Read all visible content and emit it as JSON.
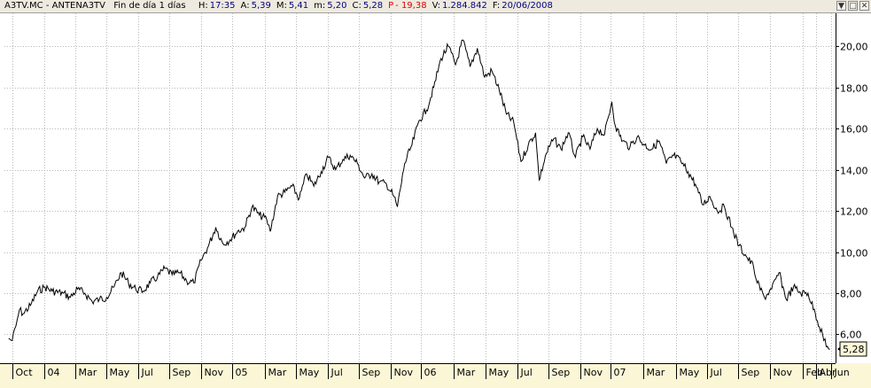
{
  "header": {
    "symbol": "A3TV.MC - ANTENA3TV",
    "period": "Fin de día 1 días",
    "fields": [
      {
        "label": "H:",
        "value": "17:35",
        "color": "#000080"
      },
      {
        "label": "A:",
        "value": "5,39",
        "color": "#000080"
      },
      {
        "label": "M:",
        "value": "5,41",
        "color": "#000080"
      },
      {
        "label": "m:",
        "value": "5,20",
        "color": "#000080"
      },
      {
        "label": "C:",
        "value": "5,28",
        "color": "#000080"
      },
      {
        "label": "P",
        "value": "- 19,38",
        "color": "#e00000"
      },
      {
        "label": "V:",
        "value": "1.284.842",
        "color": "#000080"
      },
      {
        "label": "F:",
        "value": "20/06/2008",
        "color": "#000080"
      }
    ],
    "buttons": [
      "▼",
      "□",
      "✕"
    ]
  },
  "chart_data": {
    "type": "line",
    "series": [
      {
        "values": [
          [
            "2004-09-24",
            5.8
          ],
          [
            "2004-10-01",
            5.7
          ],
          [
            "2004-10-08",
            6.4
          ],
          [
            "2004-10-15",
            7.2
          ],
          [
            "2004-10-22",
            7.0
          ],
          [
            "2004-11-05",
            7.4
          ],
          [
            "2004-11-19",
            8.1
          ],
          [
            "2004-12-03",
            8.3
          ],
          [
            "2004-12-17",
            8.1
          ],
          [
            "2005-01-07",
            8.0
          ],
          [
            "2005-01-21",
            7.8
          ],
          [
            "2005-02-04",
            8.2
          ],
          [
            "2005-02-18",
            8.0
          ],
          [
            "2005-03-04",
            7.6
          ],
          [
            "2005-03-18",
            7.7
          ],
          [
            "2005-04-01",
            7.8
          ],
          [
            "2005-04-15",
            8.3
          ],
          [
            "2005-04-29",
            9.0
          ],
          [
            "2005-05-13",
            8.5
          ],
          [
            "2005-05-27",
            8.2
          ],
          [
            "2005-06-10",
            8.1
          ],
          [
            "2005-06-24",
            8.5
          ],
          [
            "2005-07-08",
            8.8
          ],
          [
            "2005-07-22",
            9.2
          ],
          [
            "2005-08-05",
            8.9
          ],
          [
            "2005-08-19",
            9.0
          ],
          [
            "2005-09-02",
            8.6
          ],
          [
            "2005-09-16",
            8.5
          ],
          [
            "2005-09-30",
            9.6
          ],
          [
            "2005-10-14",
            10.3
          ],
          [
            "2005-10-28",
            11.2
          ],
          [
            "2005-11-11",
            10.4
          ],
          [
            "2005-11-25",
            10.6
          ],
          [
            "2005-12-09",
            11.0
          ],
          [
            "2005-12-23",
            11.2
          ],
          [
            "2006-01-06",
            12.2
          ],
          [
            "2006-01-20",
            11.8
          ],
          [
            "2006-02-03",
            11.6
          ],
          [
            "2006-02-10",
            11.0
          ],
          [
            "2006-02-24",
            12.7
          ],
          [
            "2006-03-10",
            12.9
          ],
          [
            "2006-03-24",
            13.2
          ],
          [
            "2006-04-07",
            12.6
          ],
          [
            "2006-04-21",
            13.8
          ],
          [
            "2006-05-05",
            13.2
          ],
          [
            "2006-05-19",
            13.9
          ],
          [
            "2006-06-02",
            14.6
          ],
          [
            "2006-06-16",
            14.0
          ],
          [
            "2006-06-30",
            14.5
          ],
          [
            "2006-07-14",
            14.7
          ],
          [
            "2006-07-28",
            14.3
          ],
          [
            "2006-08-11",
            13.6
          ],
          [
            "2006-08-25",
            13.8
          ],
          [
            "2006-09-08",
            13.4
          ],
          [
            "2006-09-22",
            13.3
          ],
          [
            "2006-10-06",
            12.7
          ],
          [
            "2006-10-13",
            12.2
          ],
          [
            "2006-10-27",
            14.3
          ],
          [
            "2006-11-10",
            15.2
          ],
          [
            "2006-11-24",
            16.4
          ],
          [
            "2006-12-08",
            16.9
          ],
          [
            "2006-12-22",
            18.0
          ],
          [
            "2007-01-05",
            19.4
          ],
          [
            "2007-01-19",
            20.0
          ],
          [
            "2007-02-02",
            19.1
          ],
          [
            "2007-02-16",
            20.3
          ],
          [
            "2007-03-02",
            19.0
          ],
          [
            "2007-03-16",
            19.9
          ],
          [
            "2007-03-30",
            18.5
          ],
          [
            "2007-04-13",
            18.8
          ],
          [
            "2007-04-27",
            17.9
          ],
          [
            "2007-05-11",
            16.7
          ],
          [
            "2007-05-25",
            16.3
          ],
          [
            "2007-06-08",
            14.4
          ],
          [
            "2007-06-22",
            15.2
          ],
          [
            "2007-07-06",
            15.8
          ],
          [
            "2007-07-13",
            13.5
          ],
          [
            "2007-07-27",
            14.8
          ],
          [
            "2007-08-10",
            15.5
          ],
          [
            "2007-08-24",
            15.0
          ],
          [
            "2007-09-07",
            15.8
          ],
          [
            "2007-09-21",
            14.6
          ],
          [
            "2007-10-05",
            15.6
          ],
          [
            "2007-10-19",
            15.0
          ],
          [
            "2007-11-02",
            16.0
          ],
          [
            "2007-11-16",
            15.7
          ],
          [
            "2007-11-30",
            17.3
          ],
          [
            "2007-12-07",
            16.1
          ],
          [
            "2007-12-21",
            15.4
          ],
          [
            "2008-01-04",
            15.1
          ],
          [
            "2008-01-18",
            15.6
          ],
          [
            "2008-02-01",
            15.2
          ],
          [
            "2008-02-15",
            15.0
          ],
          [
            "2008-02-29",
            15.4
          ],
          [
            "2008-03-14",
            14.3
          ],
          [
            "2008-03-28",
            14.7
          ],
          [
            "2008-04-11",
            14.4
          ],
          [
            "2008-04-25",
            13.9
          ],
          [
            "2008-05-09",
            13.3
          ],
          [
            "2008-05-23",
            12.3
          ],
          [
            "2008-06-06",
            12.7
          ],
          [
            "2008-06-20",
            12.0
          ],
          [
            "2008-07-04",
            12.2
          ],
          [
            "2008-07-18",
            11.2
          ],
          [
            "2008-08-01",
            10.3
          ],
          [
            "2008-08-15",
            9.8
          ],
          [
            "2008-08-29",
            9.3
          ],
          [
            "2008-09-05",
            8.5
          ],
          [
            "2008-09-19",
            7.8
          ],
          [
            "2008-10-03",
            8.2
          ],
          [
            "2008-10-17",
            9.0
          ],
          [
            "2008-10-31",
            7.7
          ],
          [
            "2008-11-14",
            8.3
          ],
          [
            "2008-11-28",
            8.0
          ],
          [
            "2008-12-12",
            8.0
          ],
          [
            "2008-12-26",
            7.0
          ],
          [
            "2009-01-09",
            6.0
          ],
          [
            "2009-01-16",
            5.4
          ],
          [
            "2009-01-23",
            5.28
          ]
        ]
      }
    ],
    "ylim": [
      4.6,
      21.6
    ],
    "yticks": [
      6,
      8,
      10,
      12,
      14,
      16,
      18,
      20
    ],
    "ytick_labels": [
      "6,00",
      "8,00",
      "10,00",
      "12,00",
      "14,00",
      "16,00",
      "18,00",
      "20,00"
    ],
    "xlim": [
      "2004-09-16",
      "2009-02-03"
    ],
    "xticks": [
      {
        "date": "2004-10-01",
        "label": "Oct"
      },
      {
        "date": "2004-12-01",
        "label": "04"
      },
      {
        "date": "2005-01-30",
        "label": "Mar"
      },
      {
        "date": "2005-04-01",
        "label": "May"
      },
      {
        "date": "2005-06-01",
        "label": "Jul"
      },
      {
        "date": "2005-07-31",
        "label": "Sep"
      },
      {
        "date": "2005-09-30",
        "label": "Nov"
      },
      {
        "date": "2005-11-28",
        "label": "05"
      },
      {
        "date": "2006-01-30",
        "label": "Mar"
      },
      {
        "date": "2006-04-01",
        "label": "May"
      },
      {
        "date": "2006-06-01",
        "label": "Jul"
      },
      {
        "date": "2006-07-31",
        "label": "Sep"
      },
      {
        "date": "2006-09-30",
        "label": "Nov"
      },
      {
        "date": "2006-11-28",
        "label": "06"
      },
      {
        "date": "2007-01-30",
        "label": "Mar"
      },
      {
        "date": "2007-04-01",
        "label": "May"
      },
      {
        "date": "2007-06-01",
        "label": "Jul"
      },
      {
        "date": "2007-07-31",
        "label": "Sep"
      },
      {
        "date": "2007-09-30",
        "label": "Nov"
      },
      {
        "date": "2007-11-28",
        "label": "07"
      },
      {
        "date": "2008-01-30",
        "label": "Mar"
      },
      {
        "date": "2008-04-01",
        "label": "May"
      },
      {
        "date": "2008-06-01",
        "label": "Jul"
      },
      {
        "date": "2008-07-31",
        "label": "Sep"
      },
      {
        "date": "2008-09-30",
        "label": "Nov"
      },
      {
        "date": "2008-12-01",
        "label": "Feb"
      },
      {
        "date": "2008-12-28",
        "label": "Abr"
      },
      {
        "date": "2009-01-25",
        "label": "Jun"
      }
    ],
    "last_value_label": "5,28",
    "grid": true,
    "grid_style": "dotted",
    "line_color": "#000000",
    "axis_bar_color": "#fbf7d6"
  }
}
